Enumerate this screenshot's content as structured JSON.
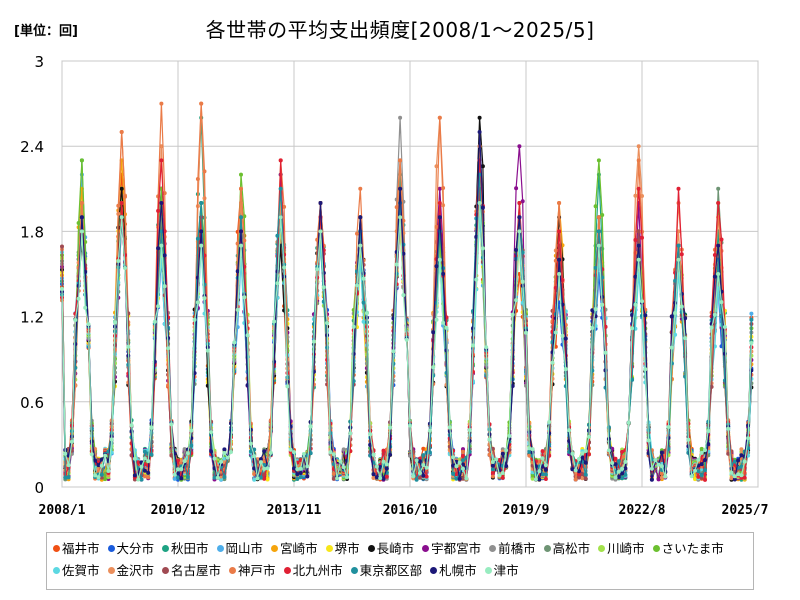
{
  "header": {
    "unit": "[単位：回]",
    "title": "各世帯の平均支出頻度[2008/1～2025/5]"
  },
  "chart_data": {
    "type": "line",
    "ylim": [
      0,
      3
    ],
    "y_ticks": [
      "0",
      "0.6",
      "1.2",
      "1.8",
      "2.4",
      "3"
    ],
    "x_range": [
      "2008-01",
      "2025-07"
    ],
    "x_ticks": [
      "2008/1",
      "2010/12",
      "2013/11",
      "2016/10",
      "2019/9",
      "2022/8",
      "2025/7"
    ],
    "grid": true,
    "legend_position": "bottom",
    "peak_dates": [
      "2008-07",
      "2009-07",
      "2010-07",
      "2011-07",
      "2012-07",
      "2013-07",
      "2014-07",
      "2015-07",
      "2016-07",
      "2017-07",
      "2018-07",
      "2019-07",
      "2020-07",
      "2021-07",
      "2022-07",
      "2023-07",
      "2024-07"
    ],
    "series": [
      {
        "name": "福井市",
        "color": "#f05014",
        "peaks": [
          1.9,
          2.2,
          2.0,
          1.8,
          2.1,
          1.8,
          1.7,
          1.6,
          1.8,
          1.9,
          2.0,
          1.5,
          1.4,
          1.8,
          1.7,
          1.6,
          1.5
        ]
      },
      {
        "name": "大分市",
        "color": "#1a5cdc",
        "peaks": [
          2.0,
          2.0,
          1.6,
          1.7,
          1.9,
          2.0,
          1.9,
          1.8,
          2.0,
          1.7,
          2.1,
          1.9,
          1.3,
          1.5,
          1.6,
          1.7,
          1.4
        ]
      },
      {
        "name": "秋田市",
        "color": "#1ea383",
        "peaks": [
          2.3,
          2.1,
          2.1,
          2.6,
          2.0,
          2.2,
          2.0,
          1.9,
          2.2,
          1.9,
          2.2,
          2.0,
          1.7,
          2.2,
          1.8,
          1.6,
          1.8
        ]
      },
      {
        "name": "岡山市",
        "color": "#4eaeea",
        "peaks": [
          2.2,
          1.9,
          1.8,
          1.7,
          1.6,
          2.1,
          1.8,
          1.7,
          2.0,
          1.6,
          2.0,
          1.8,
          1.5,
          1.7,
          1.6,
          1.6,
          1.5
        ]
      },
      {
        "name": "宮崎市",
        "color": "#f5a40c",
        "peaks": [
          2.1,
          2.3,
          1.9,
          2.0,
          1.8,
          1.9,
          1.9,
          1.7,
          1.9,
          1.8,
          2.1,
          1.8,
          2.0,
          1.8,
          1.7,
          1.6,
          1.7
        ]
      },
      {
        "name": "堺市",
        "color": "#f7e61a",
        "peaks": [
          1.8,
          2.1,
          1.7,
          1.9,
          1.7,
          1.8,
          1.8,
          1.6,
          1.8,
          1.9,
          1.9,
          1.7,
          1.6,
          1.8,
          1.6,
          1.5,
          1.6
        ]
      },
      {
        "name": "長崎市",
        "color": "#111111",
        "peaks": [
          1.7,
          2.1,
          1.9,
          1.9,
          1.8,
          1.7,
          2.0,
          1.9,
          2.1,
          1.9,
          2.6,
          1.9,
          1.9,
          1.8,
          1.7,
          1.7,
          1.6
        ]
      },
      {
        "name": "宇都宮市",
        "color": "#8a0e8e",
        "peaks": [
          1.9,
          1.9,
          2.1,
          1.8,
          1.7,
          2.2,
          1.8,
          1.8,
          1.9,
          2.1,
          2.3,
          2.4,
          1.6,
          1.9,
          2.0,
          1.6,
          1.6
        ]
      },
      {
        "name": "前橋市",
        "color": "#909090",
        "peaks": [
          1.8,
          2.0,
          1.8,
          1.9,
          1.8,
          1.9,
          1.7,
          1.8,
          2.6,
          1.8,
          2.0,
          1.8,
          1.6,
          1.8,
          1.7,
          1.7,
          1.5
        ]
      },
      {
        "name": "高松市",
        "color": "#6e9474",
        "peaks": [
          2.0,
          1.9,
          1.9,
          2.0,
          1.8,
          2.0,
          1.8,
          1.7,
          2.0,
          1.8,
          2.1,
          1.9,
          1.6,
          1.9,
          1.7,
          1.7,
          2.1
        ]
      },
      {
        "name": "川崎市",
        "color": "#a3e24c",
        "peaks": [
          1.9,
          2.0,
          1.8,
          1.9,
          1.8,
          1.9,
          1.8,
          1.7,
          1.9,
          1.7,
          2.0,
          1.8,
          1.6,
          1.8,
          1.7,
          1.6,
          1.5
        ]
      },
      {
        "name": "さいたま市",
        "color": "#6cc030",
        "peaks": [
          2.3,
          2.0,
          2.1,
          2.0,
          2.2,
          2.0,
          1.9,
          1.8,
          2.1,
          1.8,
          2.4,
          2.0,
          1.7,
          2.3,
          1.8,
          1.7,
          2.0
        ]
      },
      {
        "name": "佐賀市",
        "color": "#5cd8e2",
        "peaks": [
          1.8,
          1.9,
          1.6,
          1.7,
          1.6,
          1.9,
          1.7,
          1.6,
          1.9,
          1.6,
          1.9,
          1.7,
          1.5,
          1.6,
          1.5,
          1.5,
          1.4
        ]
      },
      {
        "name": "金沢市",
        "color": "#eb8f5c",
        "peaks": [
          2.0,
          2.5,
          2.4,
          2.7,
          2.0,
          2.0,
          1.9,
          1.8,
          2.3,
          2.6,
          2.4,
          1.9,
          2.0,
          1.9,
          2.4,
          1.8,
          1.9
        ]
      },
      {
        "name": "名古屋市",
        "color": "#a04a52",
        "peaks": [
          1.9,
          2.0,
          1.8,
          1.9,
          1.9,
          1.9,
          2.0,
          1.8,
          2.0,
          1.8,
          2.1,
          1.9,
          1.7,
          1.8,
          1.8,
          1.7,
          1.6
        ]
      },
      {
        "name": "神戸市",
        "color": "#ea7b48",
        "peaks": [
          2.0,
          2.5,
          2.7,
          2.7,
          2.1,
          2.3,
          2.0,
          2.1,
          2.3,
          2.6,
          2.4,
          1.9,
          2.0,
          1.9,
          2.3,
          2.0,
          1.9
        ]
      },
      {
        "name": "北九州市",
        "color": "#e02034",
        "peaks": [
          1.9,
          2.0,
          2.3,
          1.9,
          1.8,
          2.3,
          1.9,
          1.8,
          2.0,
          2.0,
          2.3,
          2.0,
          1.8,
          1.8,
          2.1,
          2.1,
          2.0
        ]
      },
      {
        "name": "東京都区部",
        "color": "#20909e",
        "peaks": [
          1.9,
          1.9,
          1.8,
          2.0,
          1.9,
          2.1,
          1.8,
          1.8,
          2.0,
          1.8,
          2.2,
          1.9,
          1.6,
          1.8,
          1.7,
          1.7,
          1.6
        ]
      },
      {
        "name": "札幌市",
        "color": "#1c1878",
        "peaks": [
          1.9,
          1.9,
          2.0,
          1.8,
          1.8,
          1.9,
          2.0,
          1.9,
          2.1,
          1.9,
          2.5,
          1.9,
          1.6,
          1.7,
          1.7,
          1.6,
          1.7
        ]
      },
      {
        "name": "津市",
        "color": "#98ecc0",
        "peaks": [
          1.8,
          1.9,
          1.7,
          1.7,
          1.7,
          1.9,
          1.8,
          1.7,
          1.9,
          1.6,
          2.0,
          1.8,
          1.5,
          1.7,
          1.6,
          1.6,
          1.5
        ]
      }
    ]
  }
}
